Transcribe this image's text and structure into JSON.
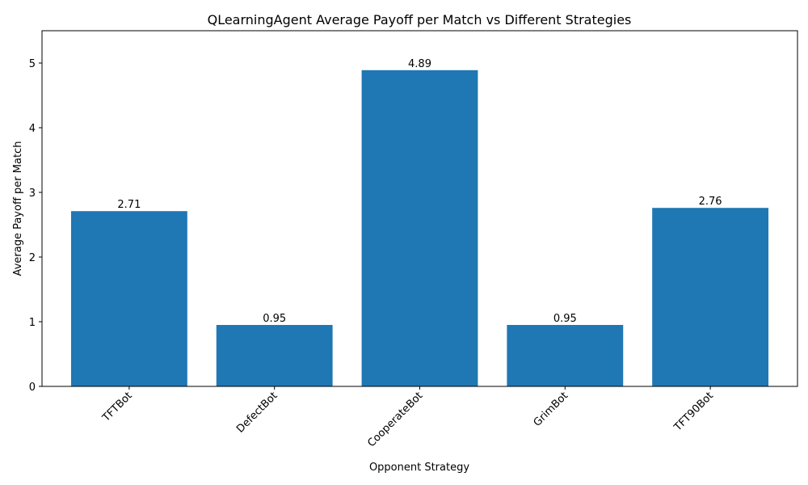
{
  "chart_data": {
    "type": "bar",
    "title": "QLearningAgent Average Payoff per Match vs Different Strategies",
    "xlabel": "Opponent Strategy",
    "ylabel": "Average Payoff per Match",
    "categories": [
      "TFTBot",
      "DefectBot",
      "CooperateBot",
      "GrimBot",
      "TFT90Bot"
    ],
    "values": [
      2.71,
      0.95,
      4.89,
      0.95,
      2.76
    ],
    "data_labels": [
      "2.71",
      "0.95",
      "4.89",
      "0.95",
      "2.76"
    ],
    "ylim": [
      0,
      5.5
    ],
    "yticks": [
      0,
      1,
      2,
      3,
      4,
      5
    ],
    "xtick_rotation_deg": 45,
    "grid": false,
    "legend": "none",
    "bar_color": "#1f77b4"
  }
}
